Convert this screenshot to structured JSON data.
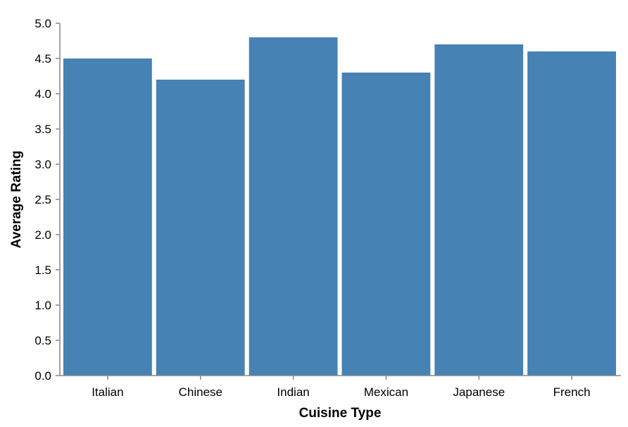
{
  "chart_data": {
    "type": "bar",
    "categories": [
      "Italian",
      "Chinese",
      "Indian",
      "Mexican",
      "Japanese",
      "French"
    ],
    "values": [
      4.5,
      4.2,
      4.8,
      4.3,
      4.7,
      4.6
    ],
    "yticks": [
      "0.0",
      "0.5",
      "1.0",
      "1.5",
      "2.0",
      "2.5",
      "3.0",
      "3.5",
      "4.0",
      "4.5",
      "5.0"
    ],
    "title": "",
    "xlabel": "Cuisine Type",
    "ylabel": "Average Rating",
    "ylim": [
      0,
      5
    ],
    "grid": false,
    "bar_color": "#4682b4",
    "axis_color": "#888888"
  }
}
